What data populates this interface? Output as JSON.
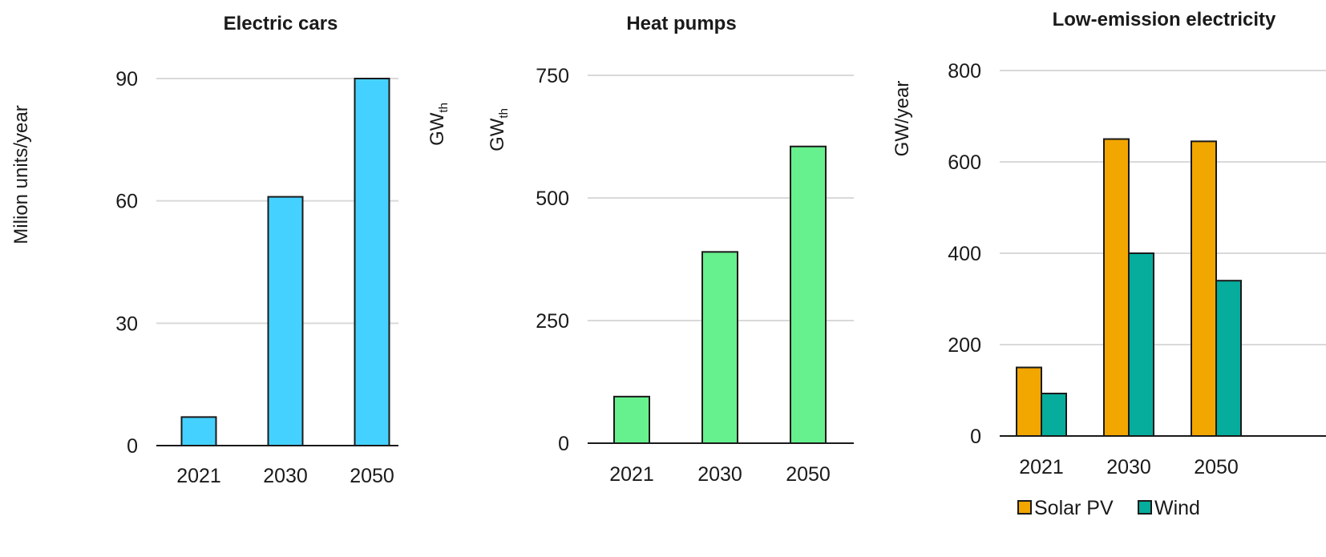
{
  "chart_data": [
    {
      "type": "bar",
      "title": "Electric cars",
      "ylabel": "Milion units/year",
      "ylabel_secondary": {
        "base": "GW",
        "sub": "th"
      },
      "categories": [
        "2021",
        "2030",
        "2050"
      ],
      "series": [
        {
          "values": [
            7,
            61,
            90
          ],
          "color": "#45d1ff"
        }
      ],
      "ylim": [
        0,
        90
      ],
      "yticks": [
        "0",
        "30",
        "60",
        "90"
      ],
      "grid": true
    },
    {
      "type": "bar",
      "title": "Heat pumps",
      "ylabel": {
        "base": "GW",
        "sub": "th"
      },
      "categories": [
        "2021",
        "2030",
        "2050"
      ],
      "series": [
        {
          "values": [
            95,
            390,
            605
          ],
          "color": "#66f08e"
        }
      ],
      "ylim": [
        0,
        750
      ],
      "yticks": [
        "0",
        "250",
        "500",
        "750"
      ],
      "grid": true
    },
    {
      "type": "bar",
      "title": "Low-emission electricity",
      "ylabel": "GW/year",
      "categories": [
        "2021",
        "2030",
        "2050"
      ],
      "series": [
        {
          "name": "Solar PV",
          "values": [
            150,
            650,
            645
          ],
          "color": "#f2a600"
        },
        {
          "name": "Wind",
          "values": [
            93,
            400,
            340
          ],
          "color": "#06ac9c"
        }
      ],
      "ylim": [
        0,
        800
      ],
      "yticks": [
        "0",
        "200",
        "400",
        "600",
        "800"
      ],
      "grid": true,
      "legend": "bottom"
    }
  ]
}
